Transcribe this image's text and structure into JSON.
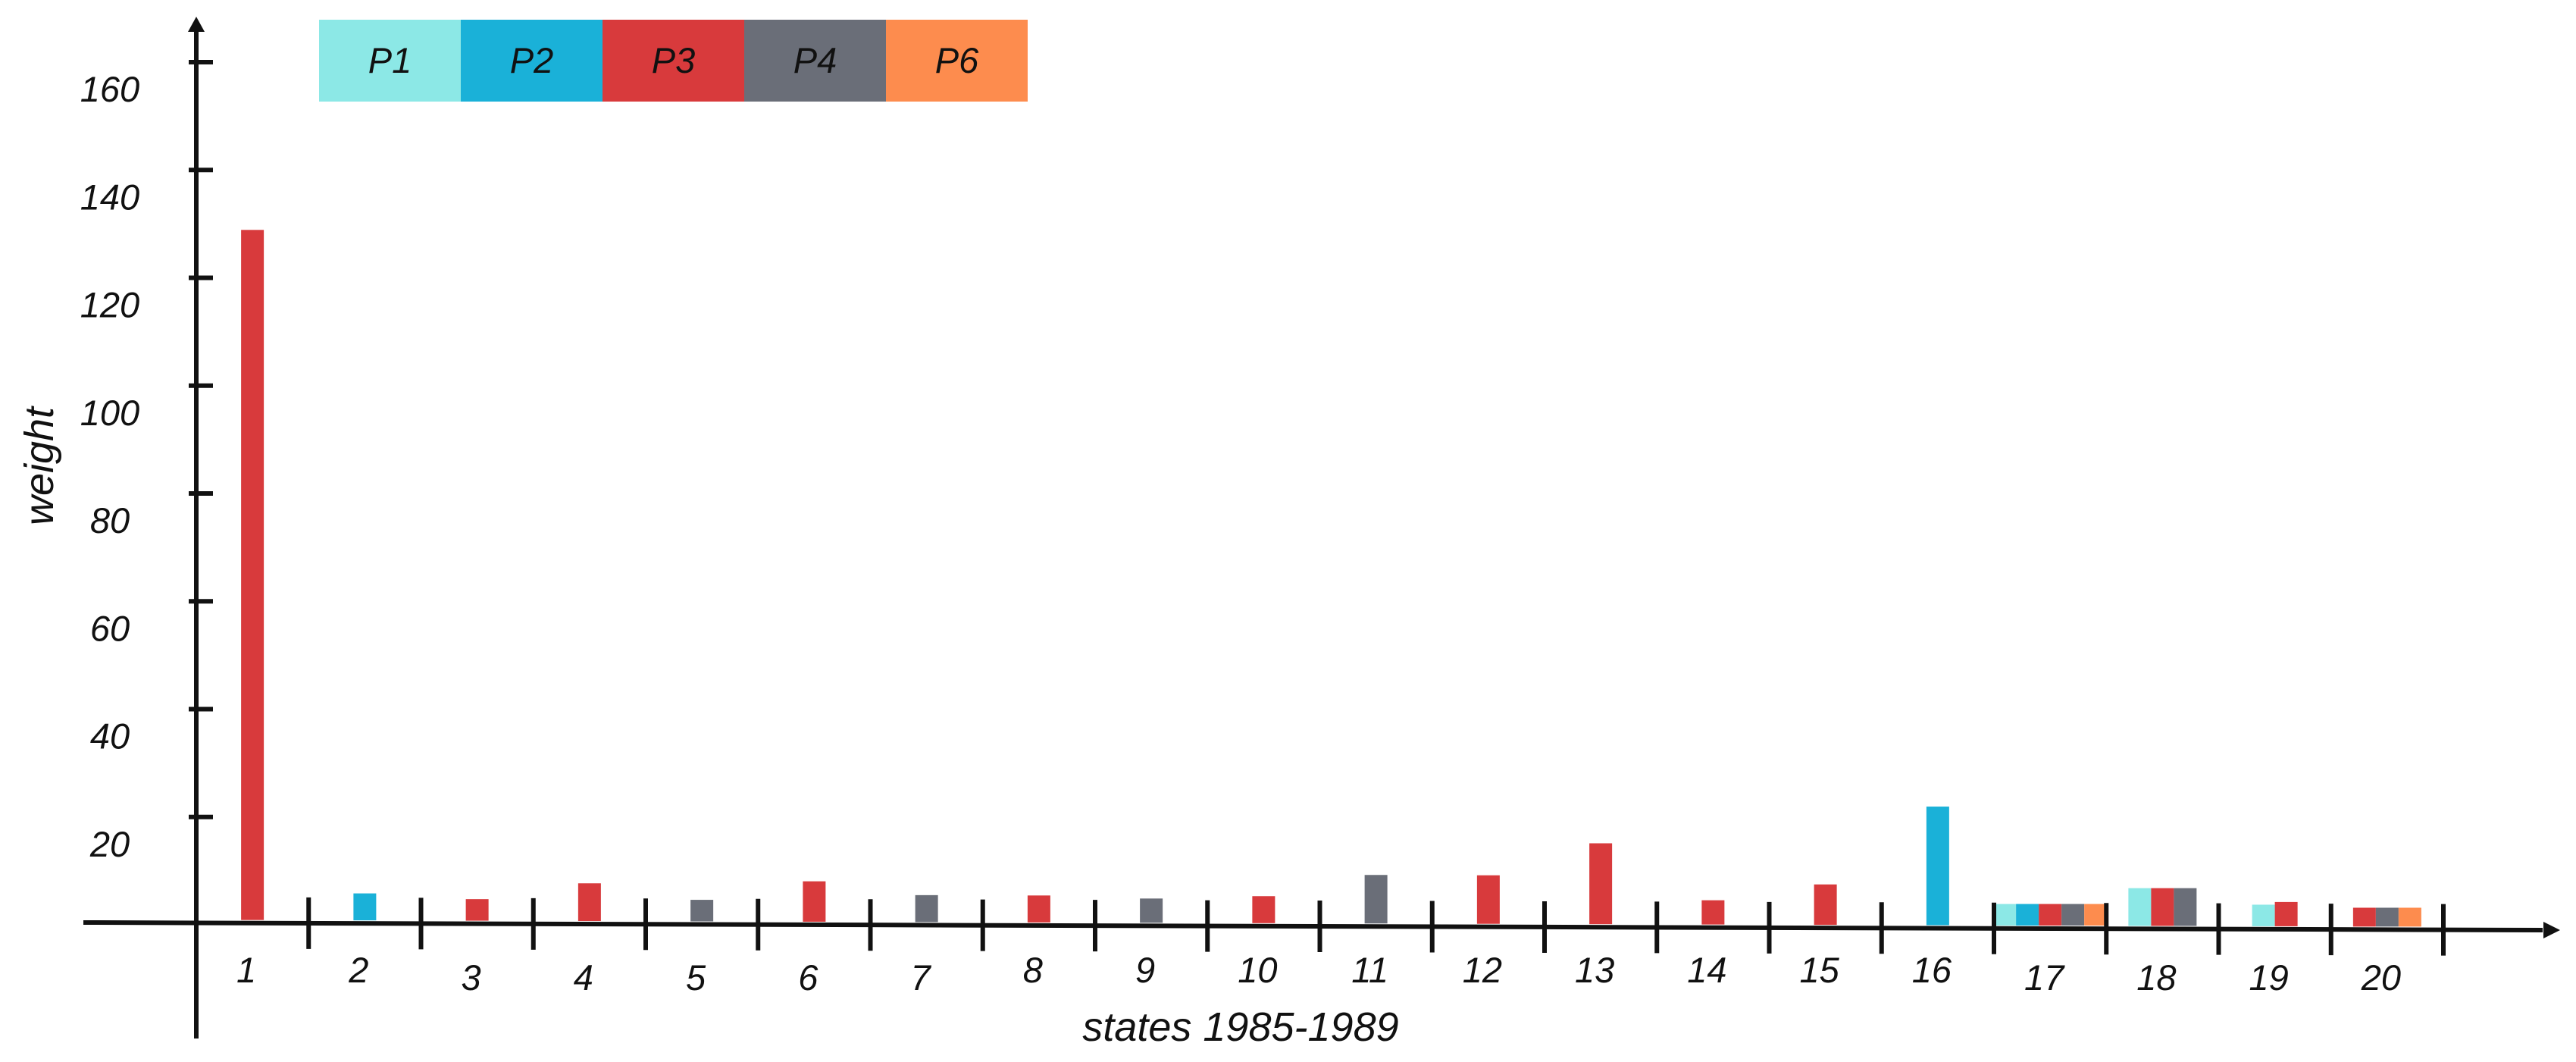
{
  "chart_data": {
    "type": "bar",
    "xlabel": "states 1985-1989",
    "ylabel": "weight",
    "ylim": [
      0,
      170
    ],
    "yticks": [
      20,
      40,
      60,
      80,
      100,
      120,
      140,
      160
    ],
    "legend": {
      "placement": "top-left",
      "orientation": "horizontal"
    },
    "categories": [
      "1",
      "2",
      "3",
      "4",
      "5",
      "6",
      "7",
      "8",
      "9",
      "10",
      "11",
      "12",
      "13",
      "14",
      "15",
      "16",
      "17",
      "18",
      "19",
      "20"
    ],
    "series": [
      {
        "name": "P1",
        "color": "#8ce8e6",
        "values": [
          0,
          0,
          0,
          0,
          0,
          0,
          0,
          0,
          0,
          0,
          0,
          0,
          0,
          0,
          0,
          0,
          4,
          7,
          4,
          0
        ]
      },
      {
        "name": "P2",
        "color": "#1ab1d8",
        "values": [
          0,
          5,
          0,
          0,
          0,
          0,
          0,
          0,
          0,
          0,
          0,
          0,
          0,
          0,
          0,
          22,
          4,
          0,
          0,
          0
        ]
      },
      {
        "name": "P3",
        "color": "#d83a3c",
        "values": [
          128,
          0,
          4,
          7,
          0,
          7.5,
          0,
          5,
          0,
          5,
          0,
          9,
          15,
          4.5,
          7.5,
          0,
          4,
          7,
          4.5,
          3.5
        ]
      },
      {
        "name": "P4",
        "color": "#6a6e78",
        "values": [
          0,
          0,
          0,
          0,
          4,
          0,
          5,
          0,
          4.5,
          0,
          9,
          0,
          0,
          0,
          0,
          0,
          4,
          7,
          0,
          3.5
        ]
      },
      {
        "name": "P6",
        "color": "#fd8c4e",
        "values": [
          0,
          0,
          0,
          0,
          0,
          0,
          0,
          0,
          0,
          0,
          0,
          0,
          0,
          0,
          0,
          0,
          4,
          0,
          0,
          3.5
        ]
      }
    ]
  }
}
